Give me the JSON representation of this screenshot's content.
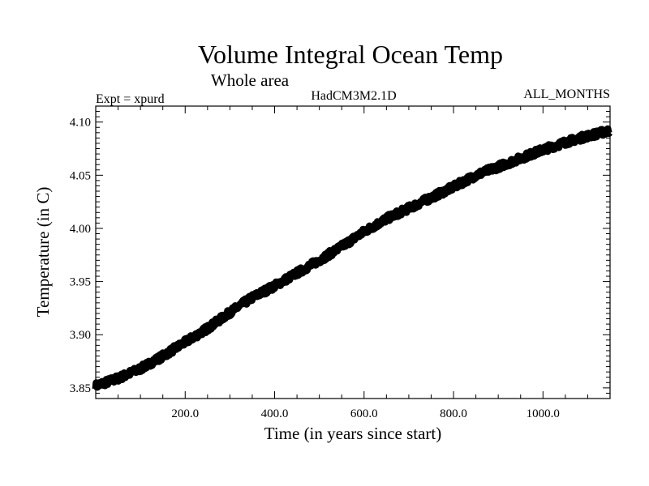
{
  "chart_data": {
    "type": "line",
    "title": "Volume Integral Ocean Temp",
    "subtitle": "Whole area",
    "expt_label": "Expt = xpurd",
    "model_label": "HadCM3M2.1D",
    "months_label": "ALL_MONTHS",
    "xlabel": "Time (in years since start)",
    "ylabel": "Temperature (in C)",
    "xlim": [
      0,
      1150
    ],
    "ylim": [
      3.84,
      4.115
    ],
    "x_ticks": [
      200,
      400,
      600,
      800,
      1000
    ],
    "x_tick_labels": [
      "200.0",
      "400.0",
      "600.0",
      "800.0",
      "1000.0"
    ],
    "y_ticks": [
      3.85,
      3.9,
      3.95,
      4.0,
      4.05,
      4.1
    ],
    "y_tick_labels": [
      "3.85",
      "3.90",
      "3.95",
      "4.00",
      "4.05",
      "4.10"
    ],
    "grid": false,
    "series": [
      {
        "name": "Volume Integral Ocean Temp",
        "color": "#000000",
        "x": [
          0,
          50,
          100,
          150,
          200,
          250,
          300,
          350,
          400,
          450,
          500,
          550,
          600,
          650,
          700,
          750,
          800,
          850,
          900,
          950,
          1000,
          1050,
          1100,
          1150
        ],
        "y": [
          3.852,
          3.859,
          3.868,
          3.88,
          3.893,
          3.906,
          3.921,
          3.935,
          3.946,
          3.958,
          3.97,
          3.983,
          3.997,
          4.009,
          4.019,
          4.029,
          4.039,
          4.05,
          4.058,
          4.066,
          4.074,
          4.081,
          4.087,
          4.092
        ]
      }
    ]
  }
}
